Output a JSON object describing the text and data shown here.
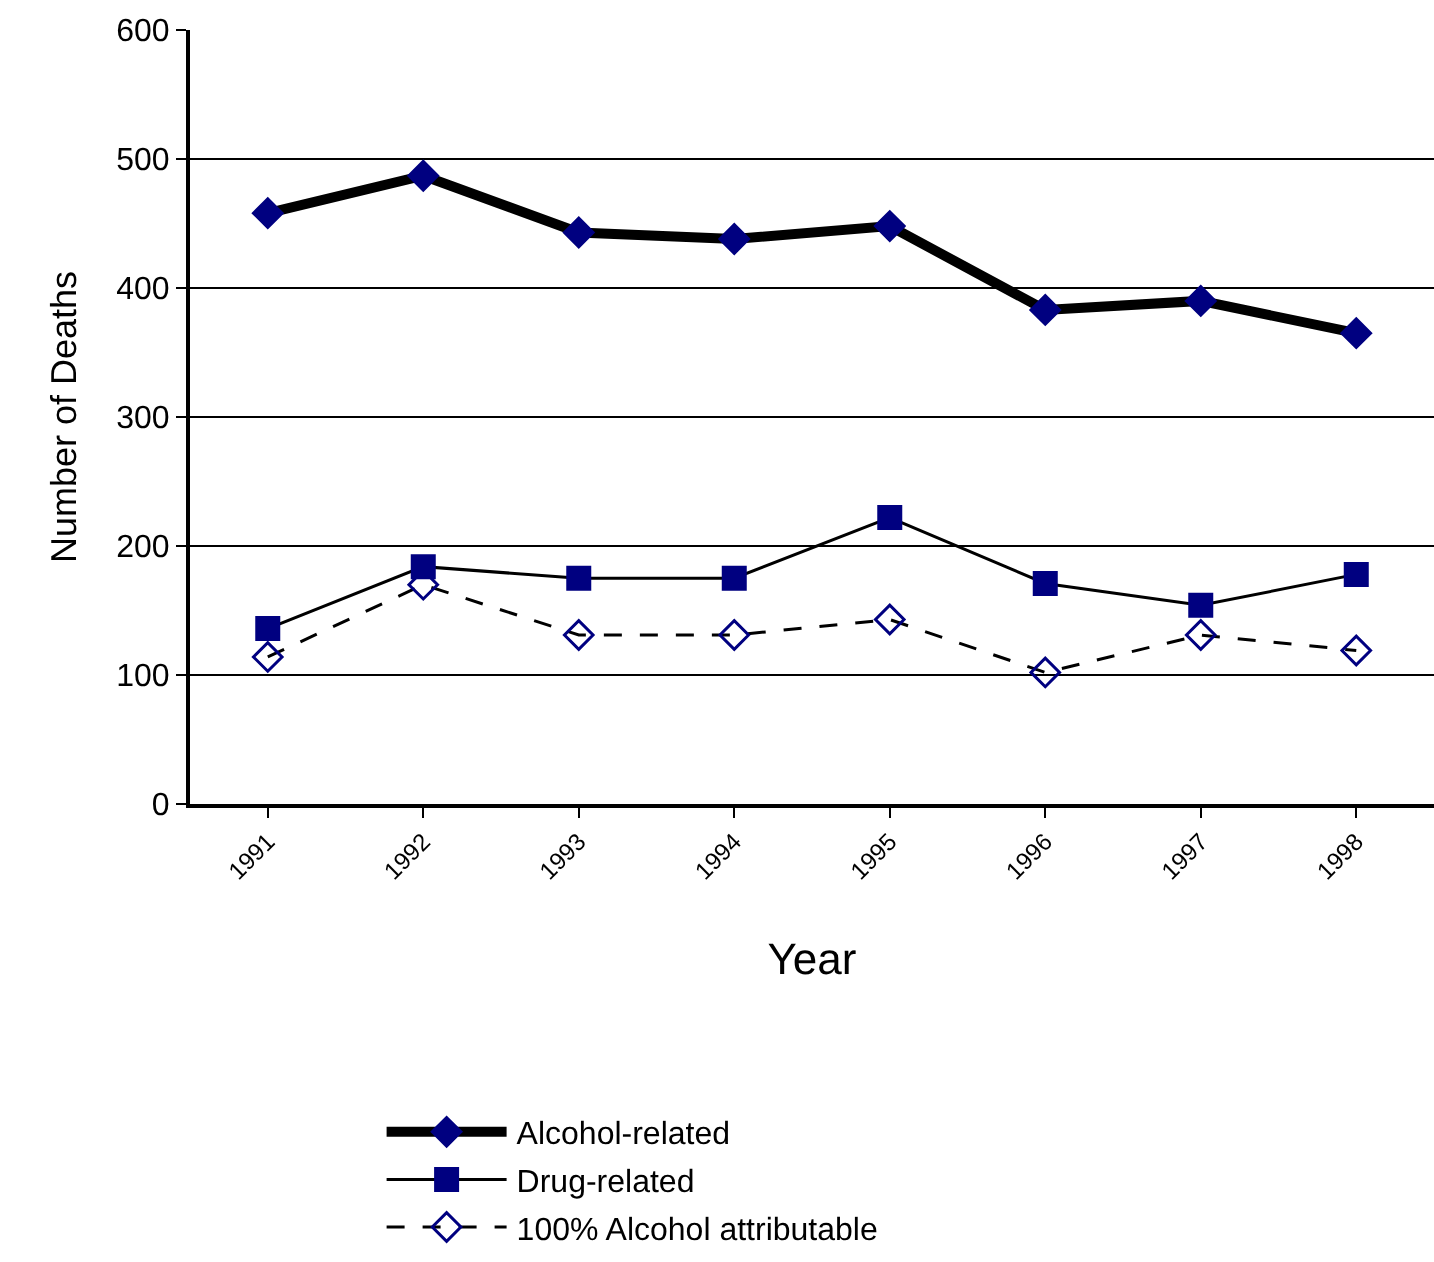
{
  "chart_data": {
    "type": "line",
    "xlabel": "Year",
    "ylabel": "Number of Deaths",
    "categories": [
      "1991",
      "1992",
      "1993",
      "1994",
      "1995",
      "1996",
      "1997",
      "1998"
    ],
    "series": [
      {
        "name": "Alcohol-related",
        "color": "#000080",
        "values": [
          458,
          487,
          443,
          438,
          448,
          383,
          390,
          365
        ],
        "marker": "diamond",
        "line_style": "solid"
      },
      {
        "name": "Drug-related",
        "color": "#000080",
        "values": [
          136,
          184,
          175,
          175,
          222,
          171,
          154,
          178
        ],
        "marker": "square",
        "line_style": "solid"
      },
      {
        "name": "100% Alcohol attributable",
        "color": "#000080",
        "values": [
          114,
          170,
          131,
          131,
          143,
          102,
          131,
          119
        ],
        "marker": "diamond-open",
        "line_style": "dashed"
      }
    ],
    "ylim": [
      0,
      600
    ],
    "yticks": [
      0,
      100,
      200,
      300,
      400,
      500,
      600
    ],
    "grid": "y",
    "legend": "bottom left"
  }
}
